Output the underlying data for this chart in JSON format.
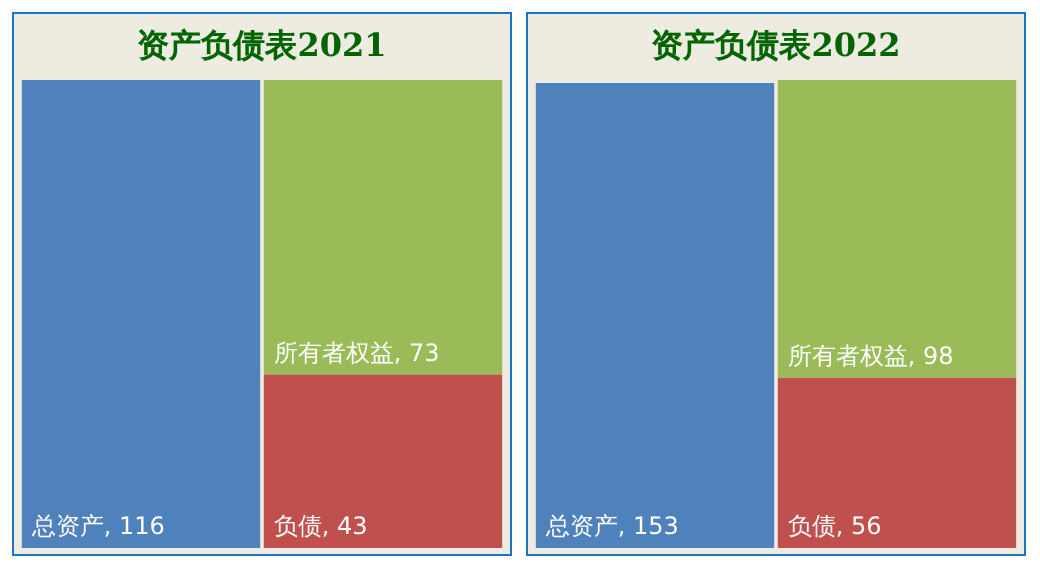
{
  "chart_data": [
    {
      "type": "other",
      "title": "资产负债表2021",
      "categories": [
        "总资产",
        "所有者权益",
        "负债"
      ],
      "values": [
        116,
        73,
        43
      ],
      "colors": [
        "#4f81bd",
        "#9bbb59",
        "#c0504d"
      ],
      "value_labels": [
        ", 116",
        ", 73",
        ", 43"
      ]
    },
    {
      "type": "other",
      "title": "资产负债表2022",
      "categories": [
        "总资产",
        "所有者权益",
        "负债"
      ],
      "values": [
        153,
        98,
        56
      ],
      "colors": [
        "#4f81bd",
        "#9bbb59",
        "#c0504d"
      ],
      "value_labels": [
        ", 153",
        ", 98",
        ", 56"
      ]
    }
  ]
}
